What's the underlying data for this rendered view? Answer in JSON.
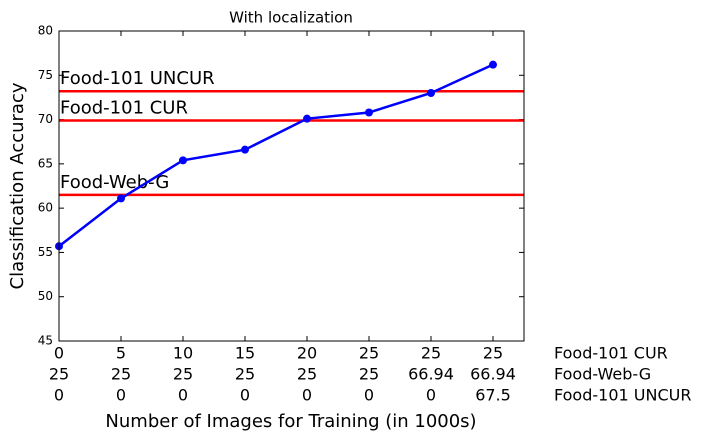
{
  "chart_data": {
    "type": "line",
    "title": "With localization",
    "xlabel": "Number of Images for Training (in 1000s)",
    "ylabel": "Classification Accuracy",
    "x_label_rows": [
      {
        "name": "Food-101 CUR",
        "labels": [
          "0",
          "5",
          "10",
          "15",
          "20",
          "25",
          "25",
          "25"
        ]
      },
      {
        "name": "Food-Web-G",
        "labels": [
          "25",
          "25",
          "25",
          "25",
          "25",
          "25",
          "66.94",
          "66.94"
        ]
      },
      {
        "name": "Food-101 UNCUR",
        "labels": [
          "0",
          "0",
          "0",
          "0",
          "0",
          "0",
          "0",
          "67.5"
        ]
      }
    ],
    "series": [
      {
        "color": "#0000ff",
        "values": [
          55.7,
          61.1,
          65.4,
          66.6,
          70.1,
          70.8,
          73.0,
          76.2
        ]
      }
    ],
    "reference_lines": [
      {
        "label": "Food-101 UNCUR",
        "value": 73.2,
        "color": "#ff0000"
      },
      {
        "label": "Food-101 CUR",
        "value": 69.9,
        "color": "#ff0000"
      },
      {
        "label": "Food-Web-G",
        "value": 61.5,
        "color": "#ff0000"
      }
    ],
    "ylim": [
      45,
      80
    ],
    "yticks": [
      45,
      50,
      55,
      60,
      65,
      70,
      75,
      80
    ]
  }
}
